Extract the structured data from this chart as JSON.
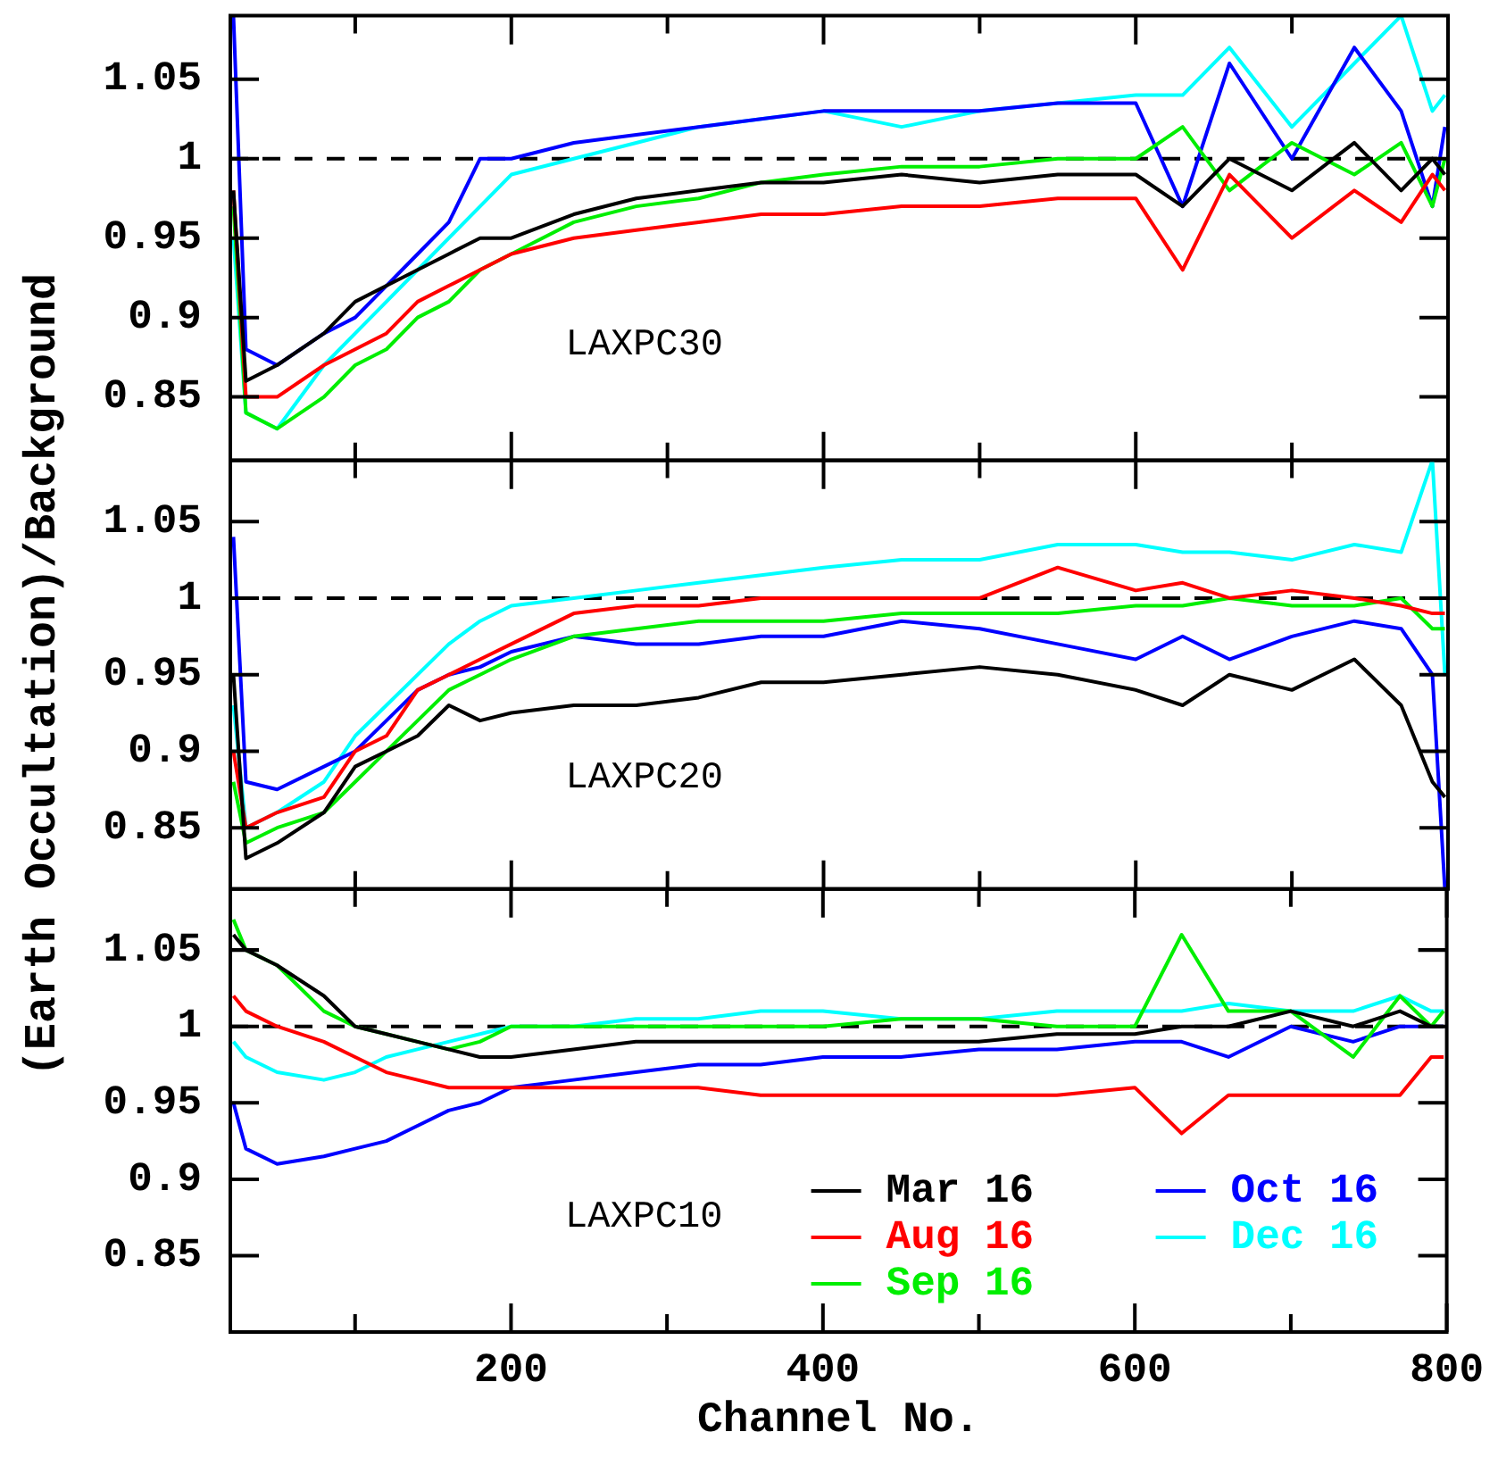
{
  "chart_data": [
    {
      "type": "line",
      "annotations": [
        "LAXPC30"
      ],
      "marker": "none",
      "legend": false,
      "tick_labels": "y",
      "x": [
        22,
        30,
        50,
        80,
        100,
        120,
        140,
        160,
        180,
        200,
        240,
        280,
        320,
        360,
        400,
        450,
        500,
        550,
        600,
        630,
        660,
        700,
        740,
        770,
        790,
        798
      ],
      "xlim": [
        20,
        800
      ],
      "xticks": [
        {
          "value": 100,
          "label": null
        },
        200,
        {
          "value": 300,
          "label": null
        },
        400,
        {
          "value": 500,
          "label": null
        },
        600,
        {
          "value": 700,
          "label": null
        },
        800
      ],
      "ylim": [
        0.81,
        1.09
      ],
      "yticks": [
        0.85,
        0.9,
        0.95,
        1,
        1.05
      ],
      "ref_lines": [
        {
          "axis": "y",
          "value": 1,
          "line_style": "dashed",
          "color": "#000000"
        }
      ],
      "series": [
        {
          "color": "#000000",
          "values": [
            0.98,
            0.86,
            0.87,
            0.89,
            0.91,
            0.92,
            0.93,
            0.94,
            0.95,
            0.95,
            0.965,
            0.975,
            0.98,
            0.985,
            0.985,
            0.99,
            0.985,
            0.99,
            0.99,
            0.97,
            1.0,
            0.98,
            1.01,
            0.98,
            1.0,
            0.99
          ]
        },
        {
          "color": "#ff0000",
          "values": [
            0.98,
            0.85,
            0.85,
            0.87,
            0.88,
            0.89,
            0.91,
            0.92,
            0.93,
            0.94,
            0.95,
            0.955,
            0.96,
            0.965,
            0.965,
            0.97,
            0.97,
            0.975,
            0.975,
            0.93,
            0.99,
            0.95,
            0.98,
            0.96,
            0.99,
            0.98
          ]
        },
        {
          "color": "#00ee00",
          "values": [
            0.97,
            0.84,
            0.83,
            0.85,
            0.87,
            0.88,
            0.9,
            0.91,
            0.93,
            0.94,
            0.96,
            0.97,
            0.975,
            0.985,
            0.99,
            0.995,
            0.995,
            1.0,
            1.0,
            1.02,
            0.98,
            1.01,
            0.99,
            1.01,
            0.97,
            1.0
          ]
        },
        {
          "color": "#0000ff",
          "values": [
            1.09,
            0.88,
            0.87,
            0.89,
            0.9,
            0.92,
            0.94,
            0.96,
            1.0,
            1.0,
            1.01,
            1.015,
            1.02,
            1.025,
            1.03,
            1.03,
            1.03,
            1.035,
            1.035,
            0.97,
            1.06,
            1.0,
            1.07,
            1.03,
            0.97,
            1.02
          ]
        },
        {
          "color": "#00ffff",
          "values": [
            0.95,
            0.84,
            0.83,
            0.87,
            0.89,
            0.91,
            0.93,
            0.95,
            0.97,
            0.99,
            1.0,
            1.01,
            1.02,
            1.025,
            1.03,
            1.02,
            1.03,
            1.035,
            1.04,
            1.04,
            1.07,
            1.02,
            1.06,
            1.09,
            1.03,
            1.04
          ]
        }
      ]
    },
    {
      "type": "line",
      "annotations": [
        "LAXPC20"
      ],
      "ylabel": "(Earth Occultation)/Background",
      "marker": "none",
      "legend": false,
      "tick_labels": "y",
      "x": [
        22,
        30,
        50,
        80,
        100,
        120,
        140,
        160,
        180,
        200,
        240,
        280,
        320,
        360,
        400,
        450,
        500,
        550,
        600,
        630,
        660,
        700,
        740,
        770,
        790,
        798
      ],
      "xlim": [
        20,
        800
      ],
      "xticks": [
        {
          "value": 100,
          "label": null
        },
        200,
        {
          "value": 300,
          "label": null
        },
        400,
        {
          "value": 500,
          "label": null
        },
        600,
        {
          "value": 700,
          "label": null
        },
        800
      ],
      "ylim": [
        0.81,
        1.09
      ],
      "yticks": [
        0.85,
        0.9,
        0.95,
        1,
        1.05
      ],
      "ref_lines": [
        {
          "axis": "y",
          "value": 1,
          "line_style": "dashed",
          "color": "#000000"
        }
      ],
      "series": [
        {
          "color": "#000000",
          "values": [
            0.95,
            0.83,
            0.84,
            0.86,
            0.89,
            0.9,
            0.91,
            0.93,
            0.92,
            0.925,
            0.93,
            0.93,
            0.935,
            0.945,
            0.945,
            0.95,
            0.955,
            0.95,
            0.94,
            0.93,
            0.95,
            0.94,
            0.96,
            0.93,
            0.88,
            0.87
          ]
        },
        {
          "color": "#ff0000",
          "values": [
            0.9,
            0.85,
            0.86,
            0.87,
            0.9,
            0.91,
            0.94,
            0.95,
            0.96,
            0.97,
            0.99,
            0.995,
            0.995,
            1.0,
            1.0,
            1.0,
            1.0,
            1.02,
            1.005,
            1.01,
            1.0,
            1.005,
            1.0,
            0.995,
            0.99,
            0.99
          ]
        },
        {
          "color": "#00ee00",
          "values": [
            0.88,
            0.84,
            0.85,
            0.86,
            0.88,
            0.9,
            0.92,
            0.94,
            0.95,
            0.96,
            0.975,
            0.98,
            0.985,
            0.985,
            0.985,
            0.99,
            0.99,
            0.99,
            0.995,
            0.995,
            1.0,
            0.995,
            0.995,
            1.0,
            0.98,
            0.98
          ]
        },
        {
          "color": "#0000ff",
          "values": [
            1.04,
            0.88,
            0.875,
            0.89,
            0.9,
            0.92,
            0.94,
            0.95,
            0.955,
            0.965,
            0.975,
            0.97,
            0.97,
            0.975,
            0.975,
            0.985,
            0.98,
            0.97,
            0.96,
            0.975,
            0.96,
            0.975,
            0.985,
            0.98,
            0.95,
            0.81
          ]
        },
        {
          "color": "#00ffff",
          "values": [
            0.93,
            0.85,
            0.86,
            0.88,
            0.91,
            0.93,
            0.95,
            0.97,
            0.985,
            0.995,
            1.0,
            1.005,
            1.01,
            1.015,
            1.02,
            1.025,
            1.025,
            1.035,
            1.035,
            1.03,
            1.03,
            1.025,
            1.035,
            1.03,
            1.09,
            0.95
          ]
        }
      ]
    },
    {
      "type": "line",
      "annotations": [
        "LAXPC10"
      ],
      "xlabel": "Channel No.",
      "marker": "none",
      "legend": "bottom right",
      "x": [
        22,
        30,
        50,
        80,
        100,
        120,
        140,
        160,
        180,
        200,
        240,
        280,
        320,
        360,
        400,
        450,
        500,
        550,
        600,
        630,
        660,
        700,
        740,
        770,
        790,
        798
      ],
      "xlim": [
        20,
        800
      ],
      "xticks": [
        {
          "value": 100,
          "label": null
        },
        200,
        {
          "value": 300,
          "label": null
        },
        400,
        {
          "value": 500,
          "label": null
        },
        600,
        {
          "value": 700,
          "label": null
        },
        800
      ],
      "ylim": [
        0.8,
        1.09
      ],
      "yticks": [
        0.85,
        0.9,
        0.95,
        1,
        1.05
      ],
      "ref_lines": [
        {
          "axis": "y",
          "value": 1,
          "line_style": "dashed",
          "color": "#000000"
        }
      ],
      "series": [
        {
          "name": "Mar 16",
          "color": "#000000",
          "values": [
            1.06,
            1.05,
            1.04,
            1.02,
            1.0,
            0.995,
            0.99,
            0.985,
            0.98,
            0.98,
            0.985,
            0.99,
            0.99,
            0.99,
            0.99,
            0.99,
            0.99,
            0.995,
            0.995,
            1.0,
            1.0,
            1.01,
            1.0,
            1.01,
            1.0,
            1.0
          ]
        },
        {
          "name": "Aug 16",
          "color": "#ff0000",
          "values": [
            1.02,
            1.01,
            1.0,
            0.99,
            0.98,
            0.97,
            0.965,
            0.96,
            0.96,
            0.96,
            0.96,
            0.96,
            0.96,
            0.955,
            0.955,
            0.955,
            0.955,
            0.955,
            0.96,
            0.93,
            0.955,
            0.955,
            0.955,
            0.955,
            0.98,
            0.98
          ]
        },
        {
          "name": "Sep 16",
          "color": "#00ee00",
          "values": [
            1.07,
            1.05,
            1.04,
            1.01,
            1.0,
            0.995,
            0.99,
            0.985,
            0.99,
            1.0,
            1.0,
            1.0,
            1.0,
            1.0,
            1.0,
            1.005,
            1.005,
            1.0,
            1.0,
            1.06,
            1.01,
            1.01,
            0.98,
            1.02,
            1.0,
            1.01
          ]
        },
        {
          "name": "Oct 16",
          "color": "#0000ff",
          "values": [
            0.95,
            0.92,
            0.91,
            0.915,
            0.92,
            0.925,
            0.935,
            0.945,
            0.95,
            0.96,
            0.965,
            0.97,
            0.975,
            0.975,
            0.98,
            0.98,
            0.985,
            0.985,
            0.99,
            0.99,
            0.98,
            1.0,
            0.99,
            1.0,
            1.0,
            1.0
          ]
        },
        {
          "name": "Dec 16",
          "color": "#00ffff",
          "values": [
            0.99,
            0.98,
            0.97,
            0.965,
            0.97,
            0.98,
            0.985,
            0.99,
            0.995,
            1.0,
            1.0,
            1.005,
            1.005,
            1.01,
            1.01,
            1.005,
            1.005,
            1.01,
            1.01,
            1.01,
            1.015,
            1.01,
            1.01,
            1.02,
            1.01,
            1.01
          ]
        }
      ]
    }
  ]
}
